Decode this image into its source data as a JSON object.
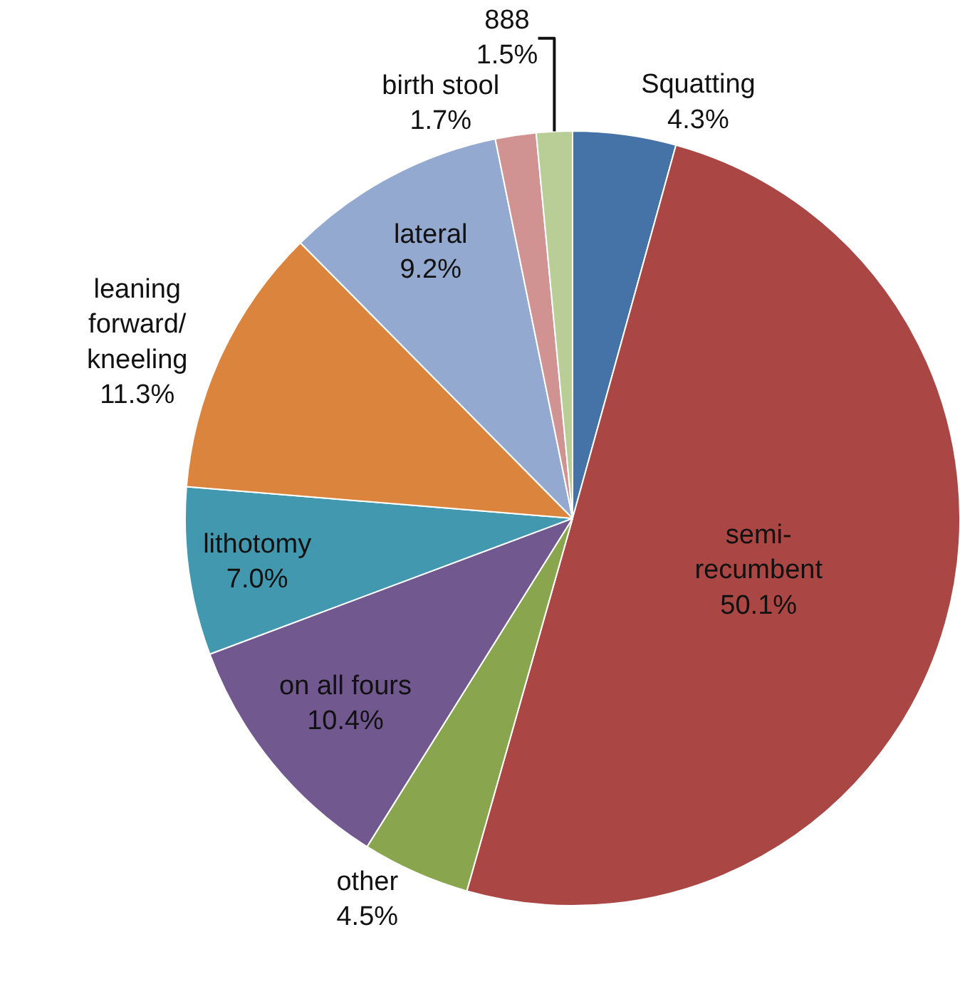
{
  "chart_data": {
    "type": "pie",
    "categories": [
      "Squatting",
      "semi-recumbent",
      "other",
      "on all fours",
      "lithotomy",
      "leaning forward/kneeling",
      "lateral",
      "birth stool",
      "888"
    ],
    "values": [
      4.3,
      50.1,
      4.5,
      10.4,
      7.0,
      11.3,
      9.2,
      1.7,
      1.5
    ],
    "value_labels": [
      "4.3%",
      "50.1%",
      "4.5%",
      "10.4%",
      "7.0%",
      "11.3%",
      "9.2%",
      "1.7%",
      "1.5%"
    ],
    "colors": [
      "#4572a7",
      "#aa4643",
      "#89a54e",
      "#71588f",
      "#4198af",
      "#db843d",
      "#93a9cf",
      "#d19392",
      "#b9cd96"
    ]
  }
}
